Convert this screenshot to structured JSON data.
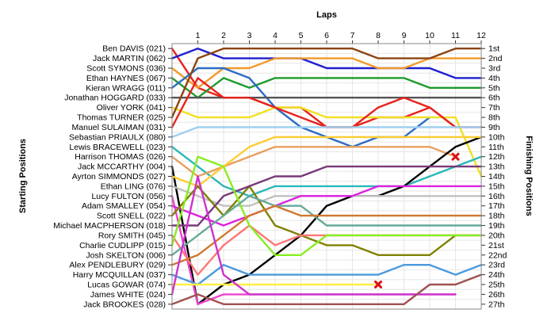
{
  "chart_data": {
    "type": "line",
    "title": "",
    "xlabel": "Laps",
    "ylabel_left": "Starting Positions",
    "ylabel_right": "Finishing Positions",
    "x": [
      0,
      1,
      2,
      3,
      4,
      5,
      6,
      7,
      8,
      9,
      10,
      11,
      12
    ],
    "lap_labels": [
      "1",
      "2",
      "3",
      "4",
      "5",
      "6",
      "7",
      "8",
      "9",
      "10",
      "11",
      "12"
    ],
    "finishing_labels": [
      "1st",
      "2nd",
      "3rd",
      "4th",
      "5th",
      "6th",
      "7th",
      "8th",
      "9th",
      "10th",
      "11th",
      "12th",
      "13th",
      "14th",
      "15th",
      "16th",
      "17th",
      "18th",
      "19th",
      "20th",
      "21st",
      "22nd",
      "23rd",
      "24th",
      "25th",
      "26th",
      "27th"
    ],
    "grid": true,
    "series": [
      {
        "name": "Ben DAVIS (021)",
        "color": "#e8221c",
        "positions": [
          1,
          5,
          6,
          6,
          7,
          7,
          9,
          9,
          8,
          8,
          7,
          9,
          null
        ],
        "retired": false
      },
      {
        "name": "Jack MARTIN (062)",
        "color": "#1f1fd0",
        "positions": [
          2,
          1,
          2,
          2,
          2,
          2,
          3,
          3,
          3,
          3,
          3,
          4,
          4
        ],
        "retired": false
      },
      {
        "name": "Scott SYMONS (036)",
        "color": "#f29a2b",
        "positions": [
          3,
          5,
          3,
          3,
          2,
          2,
          2,
          2,
          3,
          3,
          2,
          2,
          2
        ],
        "retired": false
      },
      {
        "name": "Ethan HAYNES (067)",
        "color": "#1d9b2b",
        "positions": [
          4,
          6,
          4,
          5,
          4,
          4,
          4,
          4,
          4,
          4,
          5,
          5,
          5
        ],
        "retired": false
      },
      {
        "name": "Kieran WRAGG (011)",
        "color": "#2b6cc4",
        "positions": [
          5,
          3,
          3,
          4,
          7,
          9,
          10,
          11,
          10,
          10,
          8,
          null,
          null
        ],
        "retired": false
      },
      {
        "name": "Jonathan HOGGARD (033)",
        "color": "#555555",
        "positions": [
          6,
          6,
          6,
          6,
          6,
          6,
          6,
          6,
          6,
          6,
          6,
          6,
          6
        ],
        "retired": false
      },
      {
        "name": "Oliver YORK (041)",
        "color": "#f0e020",
        "positions": [
          7,
          8,
          8,
          8,
          7,
          7,
          8,
          8,
          8,
          8,
          8,
          8,
          14
        ],
        "retired": false
      },
      {
        "name": "Thomas TURNER (025)",
        "color": "#8b4513",
        "positions": [
          8,
          2,
          1,
          1,
          1,
          1,
          1,
          1,
          2,
          2,
          2,
          1,
          1
        ],
        "retired": false
      },
      {
        "name": "Manuel SULAIMAN (031)",
        "color": "#e8221c",
        "positions": [
          9,
          4,
          6,
          6,
          7,
          8,
          9,
          9,
          7,
          6,
          7,
          9,
          9
        ],
        "retired": false
      },
      {
        "name": "Sebastian PRIAULX (080)",
        "color": "#a0d0f0",
        "positions": [
          10,
          9,
          9,
          9,
          9,
          9,
          9,
          9,
          9,
          9,
          9,
          9,
          9
        ],
        "retired": false
      },
      {
        "name": "Lewis BRACEWELL (023)",
        "color": "#2ab8b8",
        "positions": [
          11,
          13,
          15,
          16,
          15,
          15,
          15,
          15,
          15,
          15,
          14,
          13,
          12
        ],
        "retired": false
      },
      {
        "name": "Harrison THOMAS (026)",
        "color": "#e8a060",
        "positions": [
          12,
          14,
          13,
          12,
          11,
          11,
          11,
          11,
          11,
          11,
          11,
          12,
          null
        ],
        "retired": true,
        "retired_lap": 11
      },
      {
        "name": "Jack MCCARTHY (004)",
        "color": "#000000",
        "positions": [
          13,
          27,
          25,
          24,
          22,
          20,
          17,
          16,
          16,
          15,
          13,
          11,
          10
        ],
        "retired": false
      },
      {
        "name": "Ayrton SIMMONDS (027)",
        "color": "#ffcc33",
        "positions": [
          14,
          15,
          13,
          11,
          10,
          10,
          10,
          10,
          10,
          10,
          10,
          10,
          10
        ],
        "retired": false
      },
      {
        "name": "Ethan LING (076)",
        "color": "#c0c0c0",
        "positions": [
          15,
          16,
          17,
          17,
          16,
          16,
          16,
          16,
          16,
          16,
          16,
          16,
          16
        ],
        "retired": false
      },
      {
        "name": "Lucy FULTON (056)",
        "color": "#ee44cc",
        "positions": [
          16,
          27,
          26,
          26,
          26,
          26,
          26,
          26,
          26,
          26,
          26,
          26,
          null
        ],
        "retired": false
      },
      {
        "name": "Adam SMALLEY (054)",
        "color": "#dd22dd",
        "positions": [
          17,
          18,
          19,
          18,
          17,
          16,
          16,
          16,
          15,
          15,
          15,
          15,
          15
        ],
        "retired": false
      },
      {
        "name": "Scott SNELL (022)",
        "color": "#808000",
        "positions": [
          18,
          15,
          18,
          15,
          19,
          20,
          21,
          21,
          22,
          22,
          22,
          20,
          20
        ],
        "retired": false
      },
      {
        "name": "Michael MACPHERSON (018)",
        "color": "#7a3a7a",
        "positions": [
          19,
          19,
          16,
          15,
          14,
          14,
          13,
          13,
          13,
          13,
          13,
          13,
          13
        ],
        "retired": false
      },
      {
        "name": "Rory SMITH (045)",
        "color": "#ff7777",
        "positions": [
          20,
          24,
          21,
          19,
          21,
          20,
          20,
          20,
          20,
          20,
          20,
          20,
          20
        ],
        "retired": false
      },
      {
        "name": "Charlie CUDLIPP (015)",
        "color": "#88ee22",
        "positions": [
          21,
          12,
          13,
          19,
          22,
          22,
          20,
          20,
          20,
          20,
          20,
          20,
          20
        ],
        "retired": false
      },
      {
        "name": "Josh SKELTON (006)",
        "color": "#66aa99",
        "positions": [
          22,
          20,
          18,
          16,
          17,
          17,
          19,
          19,
          19,
          19,
          19,
          19,
          19
        ],
        "retired": false
      },
      {
        "name": "Alex PENDLEBURY (029)",
        "color": "#d07830",
        "positions": [
          23,
          22,
          20,
          18,
          17,
          18,
          18,
          18,
          18,
          18,
          18,
          18,
          18
        ],
        "retired": false
      },
      {
        "name": "Harry MCQUILLAN (037)",
        "color": "#4a9adf",
        "positions": [
          24,
          25,
          23,
          24,
          24,
          24,
          24,
          24,
          24,
          23,
          23,
          24,
          23
        ],
        "retired": false
      },
      {
        "name": "Lucas GOWAR (074)",
        "color": "#ffee44",
        "positions": [
          25,
          25,
          25,
          25,
          25,
          25,
          25,
          25,
          25,
          null,
          null,
          null,
          null
        ],
        "retired": true,
        "retired_lap": 8
      },
      {
        "name": "James WHITE (024)",
        "color": "#cc33cc",
        "positions": [
          26,
          14,
          24,
          26,
          26,
          26,
          26,
          26,
          26,
          26,
          26,
          26,
          null
        ],
        "retired": false
      },
      {
        "name": "Jack BROOKES (028)",
        "color": "#a05050",
        "positions": [
          27,
          26,
          27,
          27,
          27,
          27,
          27,
          27,
          27,
          27,
          25,
          25,
          24
        ],
        "retired": false
      }
    ]
  }
}
